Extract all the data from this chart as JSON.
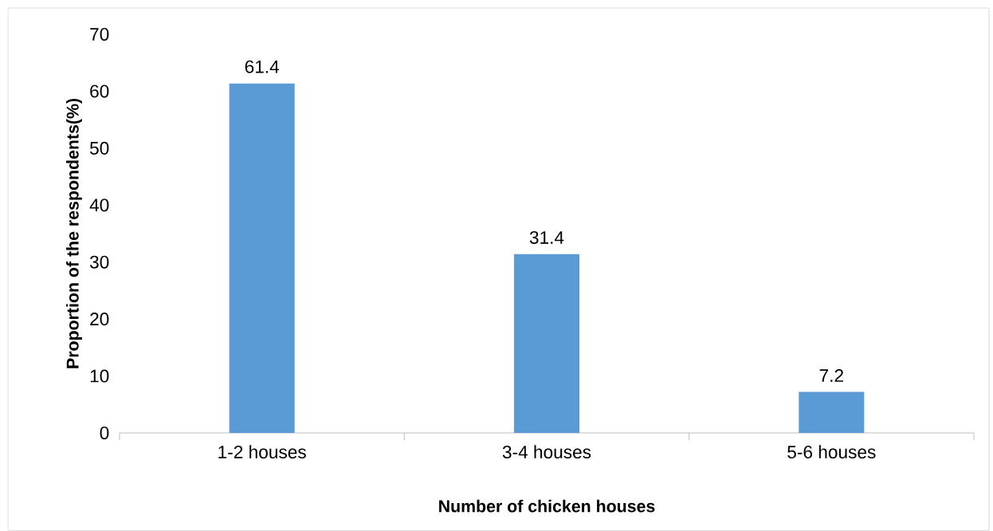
{
  "chart_data": {
    "type": "bar",
    "xlabel": "Number of chicken houses",
    "ylabel": "Proportion of the respondents(%)",
    "categories": [
      "1-2 houses",
      "3-4 houses",
      "5-6 houses"
    ],
    "values": [
      61.4,
      31.4,
      7.2
    ],
    "color": "#5b9bd5",
    "ylim": [
      0,
      70
    ],
    "yticks": [
      0,
      10,
      20,
      30,
      40,
      50,
      60,
      70
    ],
    "data_labels": true
  }
}
